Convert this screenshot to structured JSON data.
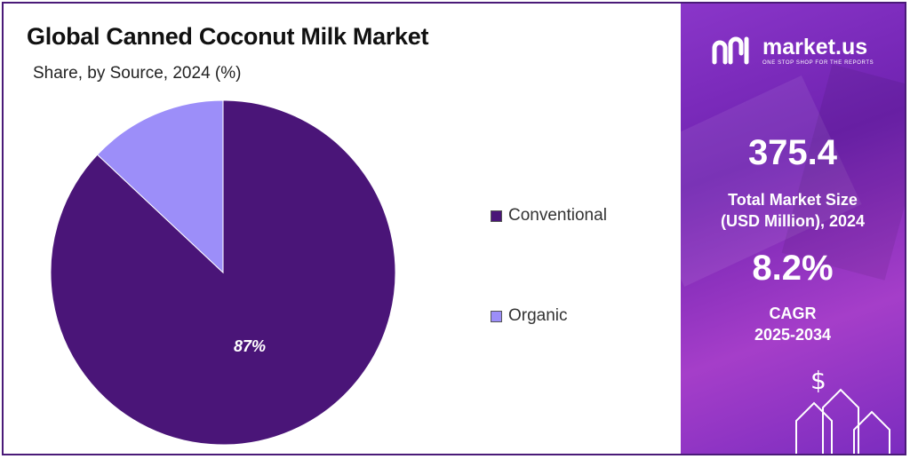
{
  "title": "Global Canned Coconut Milk Market",
  "subtitle": "Share, by Source, 2024 (%)",
  "chart_data": {
    "type": "pie",
    "categories": [
      "Conventional",
      "Organic"
    ],
    "values": [
      87,
      13
    ],
    "colors": [
      "#4a1578",
      "#9c8ef9"
    ],
    "data_labels": [
      "87%",
      ""
    ],
    "legend_position": "right"
  },
  "legend": [
    {
      "label": "Conventional",
      "color": "#4a1578"
    },
    {
      "label": "Organic",
      "color": "#9c8ef9"
    }
  ],
  "brand": {
    "name": "market.us",
    "tagline": "ONE STOP SHOP FOR THE REPORTS",
    "logo_icon": "market-us-logo"
  },
  "stats": {
    "market_size_value": "375.4",
    "market_size_label_1": "Total Market Size",
    "market_size_label_2": "(USD Million), 2024",
    "cagr_value": "8.2%",
    "cagr_label_1": "CAGR",
    "cagr_label_2": "2025-2034"
  },
  "decor_icons": [
    "dollar-coin-icon",
    "up-arrow-icon"
  ],
  "accent_color": "#7b2cbf"
}
